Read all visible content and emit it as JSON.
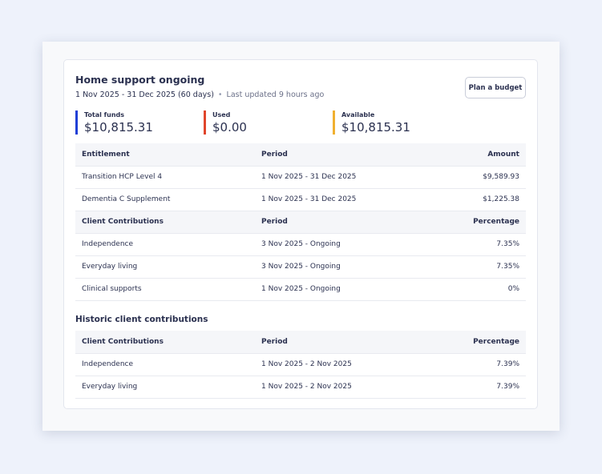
{
  "card": {
    "title": "Home support ongoing",
    "date_range": "1 Nov 2025 - 31 Dec 2025 (60 days)",
    "separator": "•",
    "last_updated": "Last updated 9 hours ago",
    "plan_button": "Plan a budget"
  },
  "funds": [
    {
      "label": "Total funds",
      "value": "$10,815.31",
      "color": "#1f3fd6"
    },
    {
      "label": "Used",
      "value": "$0.00",
      "color": "#e0452b"
    },
    {
      "label": "Available",
      "value": "$10,815.31",
      "color": "#f0b030"
    }
  ],
  "entitlements": {
    "headers": [
      "Entitlement",
      "Period",
      "Amount"
    ],
    "rows": [
      [
        "Transition HCP Level 4",
        "1 Nov 2025 - 31 Dec 2025",
        "$9,589.93"
      ],
      [
        "Dementia C Supplement",
        "1 Nov 2025 - 31 Dec 2025",
        "$1,225.38"
      ]
    ]
  },
  "contributions": {
    "headers": [
      "Client Contributions",
      "Period",
      "Percentage"
    ],
    "rows": [
      [
        "Independence",
        "3 Nov 2025 - Ongoing",
        "7.35%"
      ],
      [
        "Everyday living",
        "3 Nov 2025 - Ongoing",
        "7.35%"
      ],
      [
        "Clinical supports",
        "1 Nov 2025 - Ongoing",
        "0%"
      ]
    ]
  },
  "historic": {
    "title": "Historic client contributions",
    "headers": [
      "Client Contributions",
      "Period",
      "Percentage"
    ],
    "rows": [
      [
        "Independence",
        "1 Nov 2025 - 2 Nov 2025",
        "7.39%"
      ],
      [
        "Everyday living",
        "1 Nov 2025 - 2 Nov 2025",
        "7.39%"
      ]
    ]
  }
}
